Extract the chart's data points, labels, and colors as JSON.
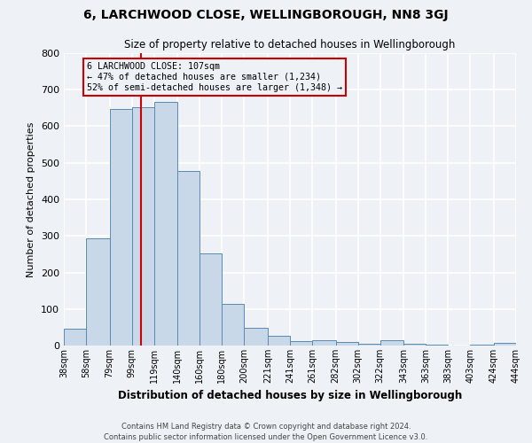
{
  "title": "6, LARCHWOOD CLOSE, WELLINGBOROUGH, NN8 3GJ",
  "subtitle": "Size of property relative to detached houses in Wellingborough",
  "xlabel": "Distribution of detached houses by size in Wellingborough",
  "ylabel": "Number of detached properties",
  "bar_edges": [
    38,
    58,
    79,
    99,
    119,
    140,
    160,
    180,
    200,
    221,
    241,
    261,
    282,
    302,
    322,
    343,
    363,
    383,
    403,
    424,
    444
  ],
  "bar_heights": [
    47,
    293,
    648,
    651,
    667,
    477,
    252,
    113,
    48,
    27,
    13,
    15,
    9,
    6,
    14,
    4,
    2,
    1,
    2,
    7
  ],
  "bar_color": "#c8d8e8",
  "bar_edge_color": "#5a8ab0",
  "vline_x": 107,
  "vline_color": "#cc0000",
  "annotation_line1": "6 LARCHWOOD CLOSE: 107sqm",
  "annotation_line2": "← 47% of detached houses are smaller (1,234)",
  "annotation_line3": "52% of semi-detached houses are larger (1,348) →",
  "annotation_box_color": "#cc0000",
  "ylim": [
    0,
    800
  ],
  "yticks": [
    0,
    100,
    200,
    300,
    400,
    500,
    600,
    700,
    800
  ],
  "tick_labels": [
    "38sqm",
    "58sqm",
    "79sqm",
    "99sqm",
    "119sqm",
    "140sqm",
    "160sqm",
    "180sqm",
    "200sqm",
    "221sqm",
    "241sqm",
    "261sqm",
    "282sqm",
    "302sqm",
    "322sqm",
    "343sqm",
    "363sqm",
    "383sqm",
    "403sqm",
    "424sqm",
    "444sqm"
  ],
  "footer_line1": "Contains HM Land Registry data © Crown copyright and database right 2024.",
  "footer_line2": "Contains public sector information licensed under the Open Government Licence v3.0.",
  "bg_color": "#eef2f7",
  "grid_color": "#ffffff",
  "figsize": [
    6.0,
    5.0
  ],
  "dpi": 100
}
